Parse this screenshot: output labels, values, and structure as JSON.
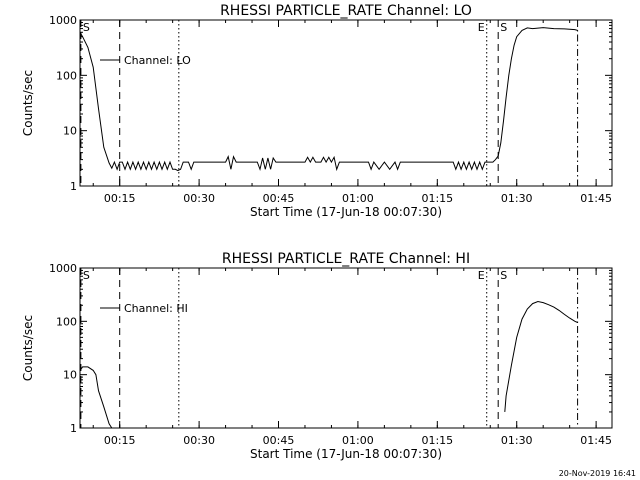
{
  "chart_data": [
    {
      "type": "line",
      "title": "RHESSI PARTICLE_RATE Channel: LO",
      "xlabel": "Start Time (17-Jun-18 00:07:30)",
      "ylabel": "Counts/sec",
      "yscale": "log",
      "ylim": [
        1,
        1000
      ],
      "xlim": [
        "00:07:30",
        "01:48:00"
      ],
      "xticks": [
        "00:15",
        "00:30",
        "00:45",
        "01:00",
        "01:15",
        "01:30",
        "01:45"
      ],
      "yticks": [
        "1",
        "10",
        "100",
        "1000"
      ],
      "legend": {
        "placement": "top-left",
        "label": "Channel: LO"
      },
      "markers": [
        {
          "label": "S",
          "time": "00:07:40",
          "style": "dashed"
        },
        {
          "label": "",
          "time": "00:15:00",
          "style": "dashed"
        },
        {
          "label": "",
          "time": "00:26:10",
          "style": "dotted"
        },
        {
          "label": "E",
          "time": "01:24:20",
          "style": "dotted"
        },
        {
          "label": "S",
          "time": "01:26:30",
          "style": "dashed"
        },
        {
          "label": "",
          "time": "01:41:30",
          "style": "dash-dot"
        }
      ],
      "series": [
        {
          "x": [
            "00:07:30",
            "00:08:00",
            "00:09:00",
            "00:10:00",
            "00:11:00",
            "00:12:00",
            "00:13:00",
            "00:13:30",
            "00:14:00",
            "00:14:30",
            "00:15:00",
            "00:15:30",
            "00:16:00",
            "00:16:30",
            "00:17:00",
            "00:17:30",
            "00:18:00",
            "00:18:30",
            "00:19:00",
            "00:19:30",
            "00:20:00",
            "00:20:30",
            "00:21:00",
            "00:21:30",
            "00:22:00",
            "00:22:30",
            "00:23:00",
            "00:23:30",
            "00:24:00",
            "00:24:30",
            "00:25:00",
            "00:25:30",
            "00:26:00",
            "00:26:30",
            "00:27:00",
            "00:28:00",
            "00:28:30",
            "00:29:00",
            "00:30:00",
            "00:32:00",
            "00:34:00",
            "00:35:00",
            "00:35:30",
            "00:36:00",
            "00:36:30",
            "00:37:00",
            "00:38:00",
            "00:40:00",
            "00:41:00",
            "00:41:30",
            "00:42:00",
            "00:42:30",
            "00:43:00",
            "00:43:30",
            "00:44:00",
            "00:44:30",
            "00:45:00",
            "00:47:00",
            "00:49:00",
            "00:50:00",
            "00:50:30",
            "00:51:00",
            "00:51:30",
            "00:52:00",
            "00:53:00",
            "00:53:30",
            "00:54:00",
            "00:54:30",
            "00:55:00",
            "00:55:30",
            "00:56:00",
            "00:56:30",
            "00:57:00",
            "00:58:00",
            "00:59:00",
            "01:00:00",
            "01:01:00",
            "01:02:00",
            "01:02:30",
            "01:03:00",
            "01:04:00",
            "01:05:00",
            "01:06:00",
            "01:07:00",
            "01:07:30",
            "01:08:00",
            "01:09:00",
            "01:11:00",
            "01:13:00",
            "01:15:00",
            "01:17:00",
            "01:18:00",
            "01:18:30",
            "01:19:00",
            "01:19:30",
            "01:20:00",
            "01:20:30",
            "01:21:00",
            "01:21:30",
            "01:22:00",
            "01:22:30",
            "01:23:00",
            "01:23:30",
            "01:24:00",
            "01:24:30",
            "01:25:00",
            "01:25:30",
            "01:26:00",
            "01:26:30",
            "01:27:00",
            "01:27:30",
            "01:28:00",
            "01:28:30",
            "01:29:00",
            "01:29:30",
            "01:30:00",
            "01:31:00",
            "01:32:00",
            "01:33:00",
            "01:35:00",
            "01:37:00",
            "01:39:00",
            "01:41:00",
            "01:41:30"
          ],
          "y": [
            600,
            500,
            320,
            140,
            25,
            5,
            2.6,
            2.1,
            2.7,
            2.0,
            2.7,
            2.7,
            2.0,
            2.7,
            2.0,
            2.7,
            2.0,
            2.7,
            2.0,
            2.7,
            2.0,
            2.7,
            2.0,
            2.7,
            2.0,
            2.7,
            2.0,
            2.7,
            2.0,
            2.7,
            2.0,
            2.0,
            1.9,
            2.0,
            2.7,
            2.7,
            2.0,
            2.7,
            2.7,
            2.7,
            2.7,
            2.7,
            3.4,
            2.0,
            3.4,
            2.7,
            2.7,
            2.7,
            2.7,
            2.0,
            3.2,
            2.0,
            3.2,
            2.0,
            3.2,
            2.7,
            2.7,
            2.7,
            2.7,
            2.7,
            3.3,
            2.7,
            3.3,
            2.7,
            2.7,
            3.3,
            2.7,
            3.3,
            2.7,
            3.3,
            2.0,
            2.7,
            2.7,
            2.7,
            2.7,
            2.7,
            2.7,
            2.7,
            2.0,
            2.7,
            2.0,
            2.7,
            2.0,
            2.7,
            2.0,
            2.7,
            2.7,
            2.7,
            2.7,
            2.7,
            2.7,
            2.7,
            2.0,
            2.7,
            2.0,
            2.7,
            2.0,
            2.7,
            2.0,
            2.7,
            2.0,
            2.7,
            2.0,
            2.7,
            2.7,
            2.7,
            2.7,
            3.0,
            3.5,
            6,
            15,
            40,
            100,
            200,
            350,
            500,
            650,
            720,
            700,
            730,
            700,
            690,
            670,
            650
          ]
        }
      ]
    },
    {
      "type": "line",
      "title": "RHESSI PARTICLE_RATE Channel: HI",
      "xlabel": "Start Time (17-Jun-18 00:07:30)",
      "ylabel": "Counts/sec",
      "yscale": "log",
      "ylim": [
        1,
        1000
      ],
      "xlim": [
        "00:07:30",
        "01:48:00"
      ],
      "xticks": [
        "00:15",
        "00:30",
        "00:45",
        "01:00",
        "01:15",
        "01:30",
        "01:45"
      ],
      "yticks": [
        "1",
        "10",
        "100",
        "1000"
      ],
      "legend": {
        "placement": "top-left",
        "label": "Channel: HI"
      },
      "markers": [
        {
          "label": "S",
          "time": "00:07:40",
          "style": "dashed"
        },
        {
          "label": "",
          "time": "00:15:00",
          "style": "dashed"
        },
        {
          "label": "",
          "time": "00:26:10",
          "style": "dotted"
        },
        {
          "label": "E",
          "time": "01:24:20",
          "style": "dotted"
        },
        {
          "label": "S",
          "time": "01:26:30",
          "style": "dashed"
        },
        {
          "label": "",
          "time": "01:41:30",
          "style": "dash-dot"
        }
      ],
      "series": [
        {
          "x": [
            "00:07:30",
            "00:08:00",
            "00:09:00",
            "00:10:00",
            "00:10:30",
            "00:11:00",
            "00:12:00",
            "00:13:00",
            "00:13:30"
          ],
          "y": [
            12,
            14,
            14,
            12,
            10,
            5,
            2.5,
            1.2,
            1.0
          ]
        },
        {
          "x": [
            "01:27:45",
            "01:28:00",
            "01:29:00",
            "01:30:00",
            "01:31:00",
            "01:32:00",
            "01:33:00",
            "01:34:00",
            "01:35:00",
            "01:36:00",
            "01:37:00",
            "01:38:00",
            "01:39:00",
            "01:40:00",
            "01:41:00",
            "01:41:30"
          ],
          "y": [
            2,
            4,
            15,
            50,
            110,
            170,
            215,
            235,
            225,
            205,
            185,
            160,
            135,
            115,
            100,
            95
          ]
        }
      ]
    }
  ],
  "footer": {
    "timestamp": "20-Nov-2019 16:41"
  }
}
